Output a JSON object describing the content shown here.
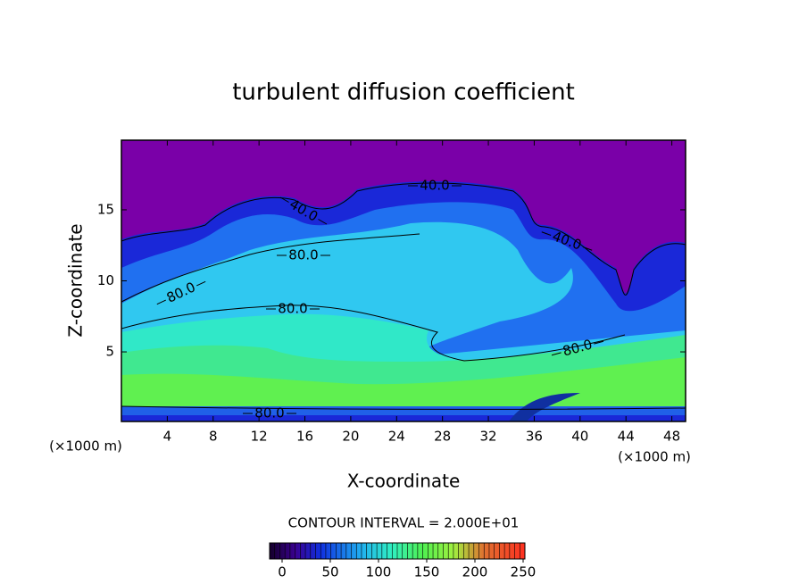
{
  "chart_data": {
    "type": "contour",
    "title": "turbulent diffusion coefficient",
    "x_label": "X-coordinate",
    "y_label": "Z-coordinate",
    "x_unit": "(×1000 m)",
    "y_unit": "(×1000 m)",
    "xlim": [
      0,
      49.2
    ],
    "xticks": [
      4,
      8,
      12,
      16,
      20,
      24,
      28,
      32,
      36,
      40,
      44,
      48
    ],
    "ylim": [
      0.1,
      19.9
    ],
    "yticks": [
      5,
      10,
      15
    ],
    "contour_interval": "CONTOUR INTERVAL = 2.000E+01",
    "contour_values": [
      40,
      40,
      40,
      80,
      80,
      80,
      80,
      80
    ],
    "value_labels": [
      "40.0",
      "40.0",
      "40.0",
      "80.0",
      "80.0",
      "80.0",
      "80.0",
      "80.0"
    ],
    "colorbar": {
      "lim": [
        0,
        250
      ],
      "ticks": [
        0,
        50,
        100,
        150,
        200,
        250
      ],
      "colormap": [
        {
          "value": 0,
          "color": "#14002a"
        },
        {
          "value": 25,
          "color": "#3a0090"
        },
        {
          "value": 50,
          "color": "#1030e0"
        },
        {
          "value": 90,
          "color": "#20b0f0"
        },
        {
          "value": 120,
          "color": "#30f0c0"
        },
        {
          "value": 150,
          "color": "#50f050"
        },
        {
          "value": 180,
          "color": "#a0f040"
        },
        {
          "value": 210,
          "color": "#e07030"
        },
        {
          "value": 250,
          "color": "#ff3020"
        }
      ]
    }
  }
}
